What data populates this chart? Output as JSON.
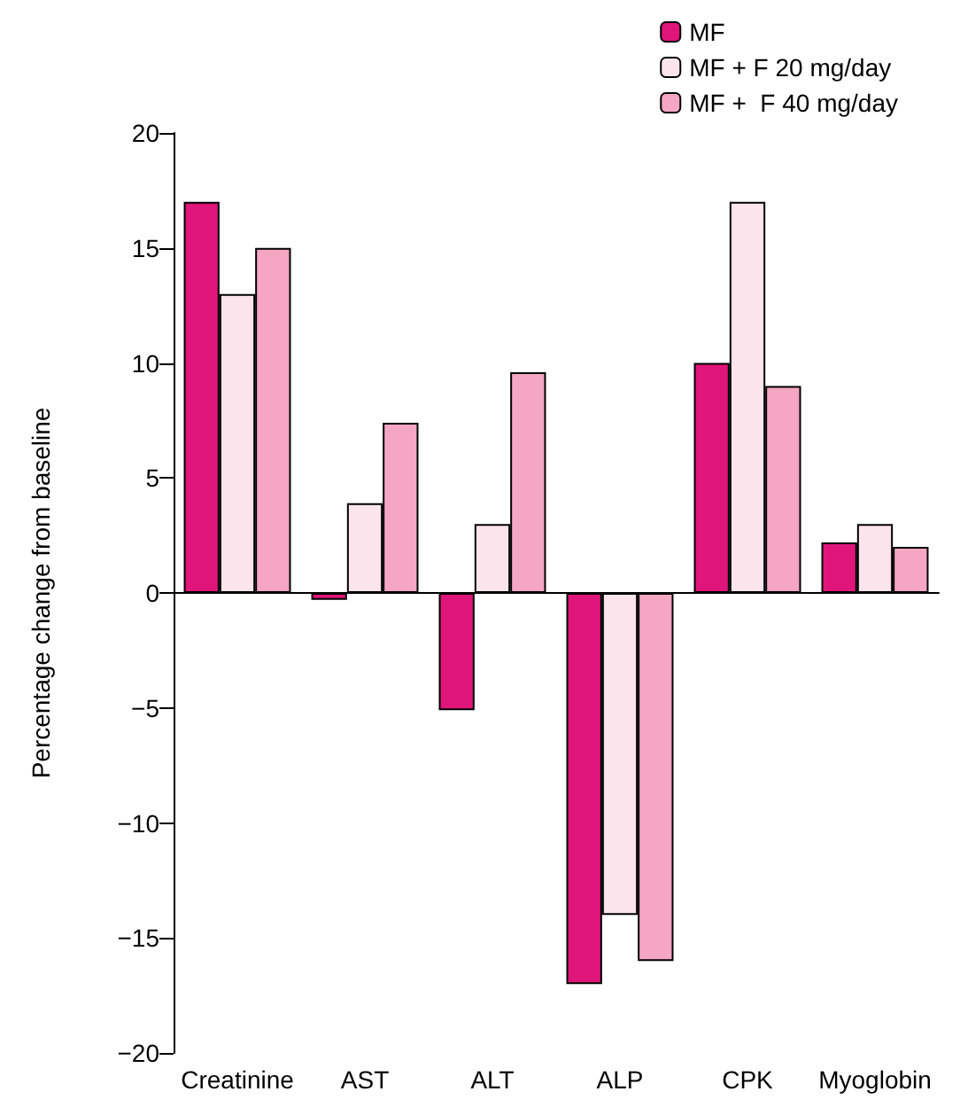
{
  "chart_data": {
    "type": "bar",
    "ylabel": "Percentage change from baseline",
    "categories": [
      "Creatinine",
      "AST",
      "ALT",
      "ALP",
      "CPK",
      "Myoglobin"
    ],
    "series": [
      {
        "name": "MF",
        "color": "#e0157a",
        "values": [
          17,
          -0.3,
          -5.1,
          -17,
          10,
          2.2
        ]
      },
      {
        "name": "MF + F 20 mg/day",
        "color": "#fbe4ec",
        "values": [
          13,
          3.9,
          3,
          -14,
          17,
          3
        ]
      },
      {
        "name": "MF +  F 40 mg/day",
        "color": "#f4a6c2",
        "values": [
          15,
          7.4,
          9.6,
          -16,
          9,
          2
        ]
      }
    ],
    "ylim": [
      -20,
      20
    ],
    "yticks": [
      -20,
      -15,
      -10,
      -5,
      0,
      5,
      10,
      15,
      20
    ],
    "legend": "top right"
  }
}
